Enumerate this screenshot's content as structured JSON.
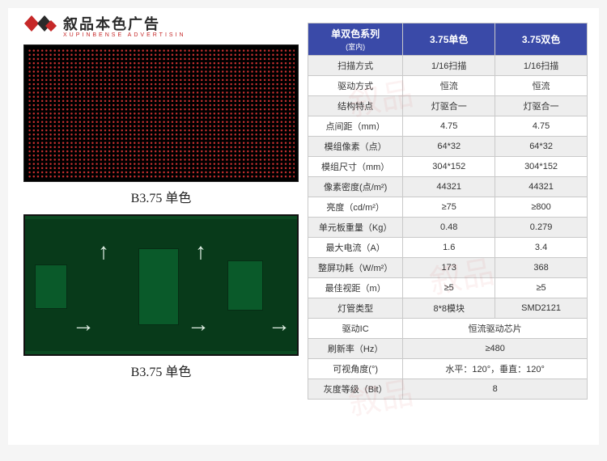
{
  "logo": {
    "brand_text": "叙品本色广告",
    "sub_text": "XUPINBENSE ADVERTISIN"
  },
  "products": [
    {
      "caption": "B3.75 单色"
    },
    {
      "caption": "B3.75 单色"
    }
  ],
  "table": {
    "header": {
      "label_main": "单双色系列",
      "label_sub": "(室内)",
      "col1": "3.75单色",
      "col2": "3.75双色"
    },
    "rows": [
      {
        "label": "扫描方式",
        "v1": "1/16扫描",
        "v2": "1/16扫描"
      },
      {
        "label": "驱动方式",
        "v1": "恒流",
        "v2": "恒流"
      },
      {
        "label": "结构特点",
        "v1": "灯驱合一",
        "v2": "灯驱合一"
      },
      {
        "label": "点间距（mm）",
        "v1": "4.75",
        "v2": "4.75"
      },
      {
        "label": "模组像素（点）",
        "v1": "64*32",
        "v2": "64*32"
      },
      {
        "label": "模组尺寸（mm）",
        "v1": "304*152",
        "v2": "304*152"
      },
      {
        "label": "像素密度(点/m²)",
        "v1": "44321",
        "v2": "44321"
      },
      {
        "label": "亮度（cd/m²）",
        "v1": "≥75",
        "v2": "≥800"
      },
      {
        "label": "单元板重量（Kg）",
        "v1": "0.48",
        "v2": "0.279"
      },
      {
        "label": "最大电流（A）",
        "v1": "1.6",
        "v2": "3.4"
      },
      {
        "label": "整屏功耗（W/m²）",
        "v1": "173",
        "v2": "368"
      },
      {
        "label": "最佳视距（m）",
        "v1": "≥5",
        "v2": "≥5"
      },
      {
        "label": "灯管类型",
        "v1": "8*8模块",
        "v2": "SMD2121"
      },
      {
        "label": "驱动IC",
        "merged": "恒流驱动芯片"
      },
      {
        "label": "刷新率（Hz）",
        "merged": "≥480"
      },
      {
        "label": "可视角度(°)",
        "merged": "水平：120°，垂直：120°"
      },
      {
        "label": "灰度等级（Bit）",
        "merged": "8"
      }
    ]
  }
}
